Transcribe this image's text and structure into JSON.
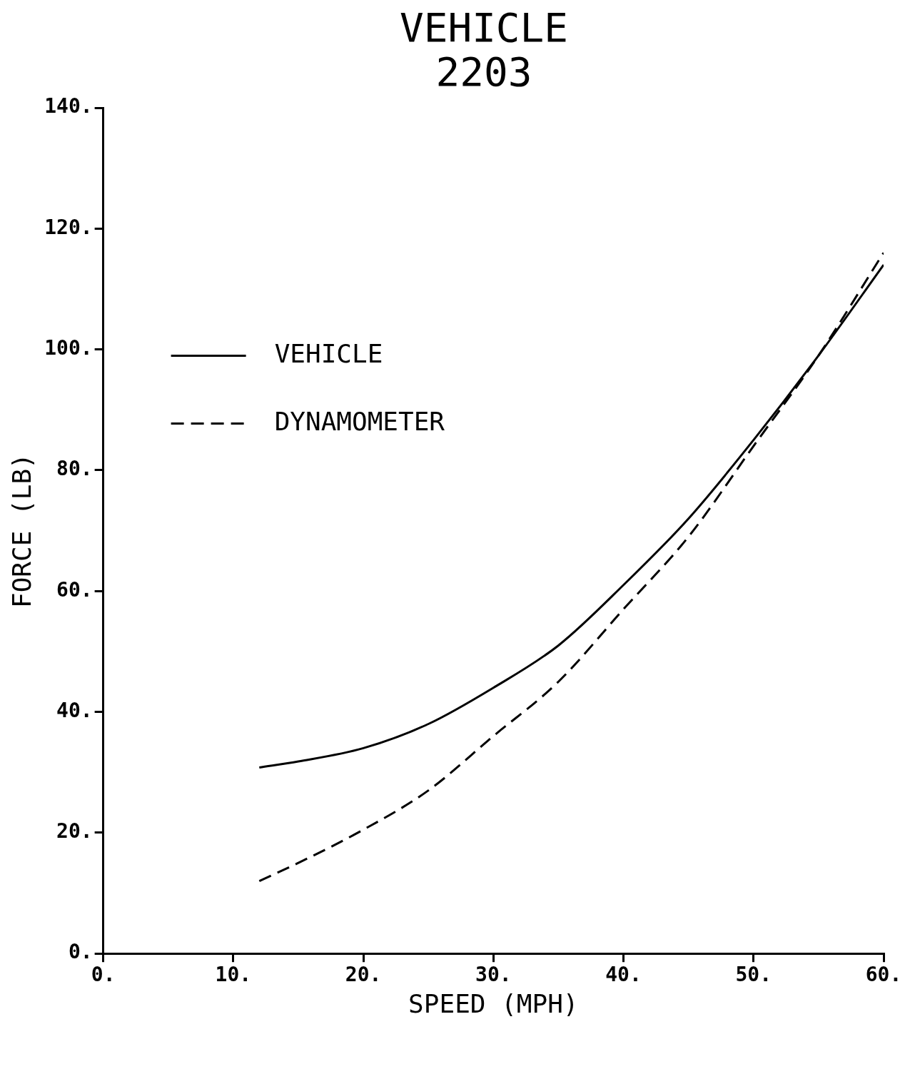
{
  "chart_data": {
    "type": "line",
    "title": "VEHICLE 2203",
    "xlabel": "SPEED (MPH)",
    "ylabel": "FORCE (LB)",
    "xlim": [
      0,
      60
    ],
    "ylim": [
      0,
      140
    ],
    "xticks": [
      {
        "value": 0,
        "label": "0."
      },
      {
        "value": 10,
        "label": "10."
      },
      {
        "value": 20,
        "label": "20."
      },
      {
        "value": 30,
        "label": "30."
      },
      {
        "value": 40,
        "label": "40."
      },
      {
        "value": 50,
        "label": "50."
      },
      {
        "value": 60,
        "label": "60."
      }
    ],
    "yticks": [
      {
        "value": 0,
        "label": "0."
      },
      {
        "value": 20,
        "label": "20."
      },
      {
        "value": 40,
        "label": "40."
      },
      {
        "value": 60,
        "label": "60."
      },
      {
        "value": 80,
        "label": "80."
      },
      {
        "value": 100,
        "label": "100."
      },
      {
        "value": 120,
        "label": "120."
      },
      {
        "value": 140,
        "label": "140."
      }
    ],
    "grid": false,
    "legend": "left",
    "marker": "none",
    "series": [
      {
        "name": "VEHICLE",
        "color": "#000000",
        "line_style": "solid",
        "x": [
          12,
          15,
          20,
          25,
          30,
          35,
          40,
          45,
          50,
          55,
          60
        ],
        "values": [
          30.8,
          31.8,
          34,
          38,
          44,
          51,
          61,
          72,
          85,
          99,
          114
        ]
      },
      {
        "name": "DYNAMOMETER",
        "color": "#000000",
        "line_style": "dashed",
        "x": [
          12,
          15,
          20,
          25,
          30,
          35,
          40,
          45,
          50,
          55,
          60
        ],
        "values": [
          12,
          15,
          20.5,
          27,
          36,
          45,
          57,
          69,
          84,
          99,
          116
        ]
      }
    ]
  }
}
